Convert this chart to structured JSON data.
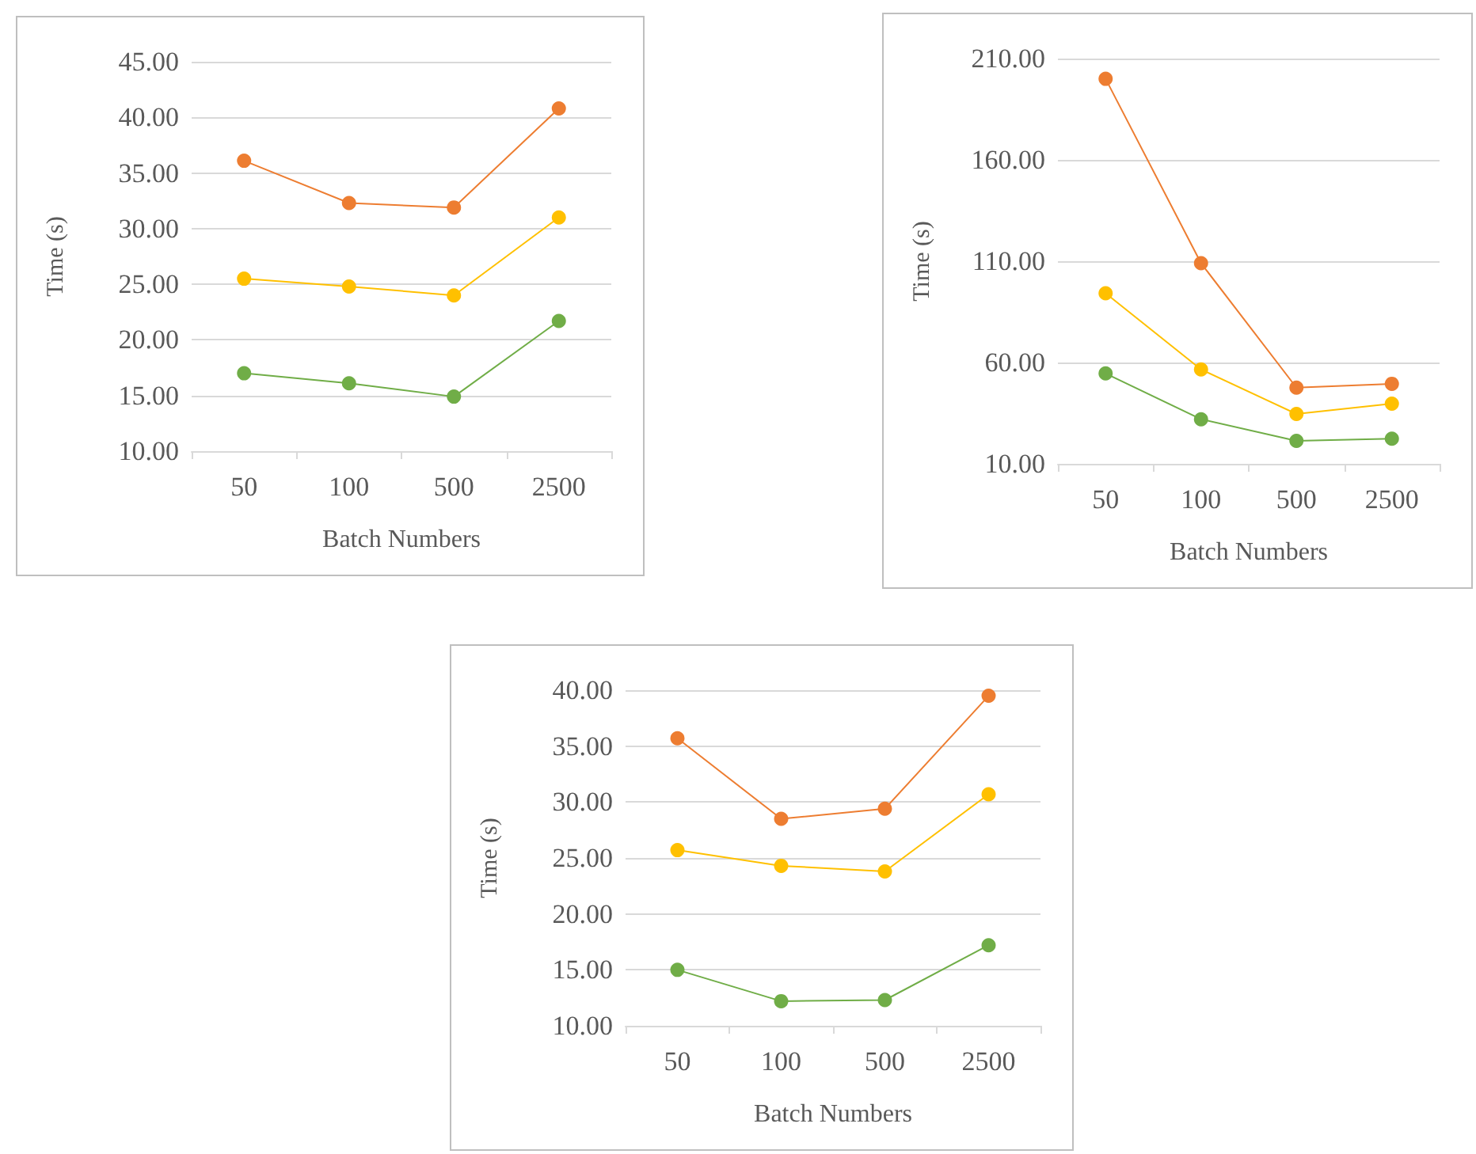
{
  "chart_data": [
    {
      "type": "line",
      "xlabel": "Batch Numbers",
      "ylabel": "Time (s)",
      "categories": [
        "50",
        "100",
        "500",
        "2500"
      ],
      "ylim": [
        10,
        45
      ],
      "yticks": [
        {
          "value": 10,
          "label": "10.00"
        },
        {
          "value": 15,
          "label": "15.00"
        },
        {
          "value": 20,
          "label": "20.00"
        },
        {
          "value": 25,
          "label": "25.00"
        },
        {
          "value": 30,
          "label": "30.00"
        },
        {
          "value": 35,
          "label": "35.00"
        },
        {
          "value": 40,
          "label": "40.00"
        },
        {
          "value": 45,
          "label": "45.00"
        }
      ],
      "grid": "y",
      "marker": "circle",
      "series": [
        {
          "color": "#ed7d31",
          "values": [
            36.1,
            32.3,
            31.9,
            40.8
          ]
        },
        {
          "color": "#ffc000",
          "values": [
            25.5,
            24.8,
            24.0,
            31.0
          ]
        },
        {
          "color": "#70ad47",
          "values": [
            17.0,
            16.1,
            14.9,
            21.7
          ]
        }
      ]
    },
    {
      "type": "line",
      "xlabel": "Batch Numbers",
      "ylabel": "Time (s)",
      "categories": [
        "50",
        "100",
        "500",
        "2500"
      ],
      "ylim": [
        10,
        210
      ],
      "yticks": [
        {
          "value": 10,
          "label": "10.00"
        },
        {
          "value": 60,
          "label": "60.00"
        },
        {
          "value": 110,
          "label": "110.00"
        },
        {
          "value": 160,
          "label": "160.00"
        },
        {
          "value": 210,
          "label": "210.00"
        }
      ],
      "grid": "y",
      "marker": "circle",
      "series": [
        {
          "color": "#ed7d31",
          "values": [
            200,
            109,
            47.6,
            49.5
          ]
        },
        {
          "color": "#ffc000",
          "values": [
            94.2,
            56.6,
            34.6,
            39.7
          ]
        },
        {
          "color": "#70ad47",
          "values": [
            54.6,
            32,
            21.3,
            22.4
          ]
        }
      ]
    },
    {
      "type": "line",
      "xlabel": "Batch Numbers",
      "ylabel": "Time (s)",
      "categories": [
        "50",
        "100",
        "500",
        "2500"
      ],
      "ylim": [
        10,
        40
      ],
      "yticks": [
        {
          "value": 10,
          "label": "10.00"
        },
        {
          "value": 15,
          "label": "15.00"
        },
        {
          "value": 20,
          "label": "20.00"
        },
        {
          "value": 25,
          "label": "25.00"
        },
        {
          "value": 30,
          "label": "30.00"
        },
        {
          "value": 35,
          "label": "35.00"
        },
        {
          "value": 40,
          "label": "40.00"
        }
      ],
      "grid": "y",
      "marker": "circle",
      "series": [
        {
          "color": "#ed7d31",
          "values": [
            35.7,
            28.5,
            29.4,
            39.5
          ]
        },
        {
          "color": "#ffc000",
          "values": [
            25.7,
            24.3,
            23.8,
            30.7
          ]
        },
        {
          "color": "#70ad47",
          "values": [
            15.0,
            12.2,
            12.3,
            17.2
          ]
        }
      ]
    }
  ]
}
